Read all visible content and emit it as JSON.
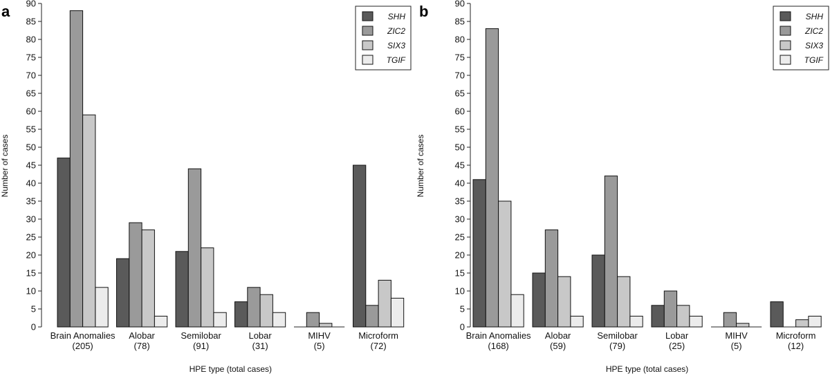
{
  "chart_data": [
    {
      "type": "bar",
      "panel_label": "a",
      "categories": [
        "Brain Anomalies",
        "Alobar",
        "Semilobar",
        "Lobar",
        "MIHV",
        "Microform"
      ],
      "category_totals": [
        "(205)",
        "(78)",
        "(91)",
        "(31)",
        "(5)",
        "(72)"
      ],
      "series": [
        {
          "name": "SHH",
          "color": "#5a5a5a",
          "values": [
            47,
            19,
            21,
            7,
            0,
            45
          ]
        },
        {
          "name": "ZIC2",
          "color": "#9a9a9a",
          "values": [
            88,
            29,
            44,
            11,
            4,
            6
          ]
        },
        {
          "name": "SIX3",
          "color": "#c8c8c8",
          "values": [
            59,
            27,
            22,
            9,
            1,
            13
          ]
        },
        {
          "name": "TGIF",
          "color": "#ececec",
          "values": [
            11,
            3,
            4,
            4,
            0,
            8
          ]
        }
      ],
      "xlabel": "HPE type (total cases)",
      "ylabel": "Number of cases",
      "ylim": [
        0,
        90
      ],
      "yticks": [
        0,
        5,
        10,
        15,
        20,
        25,
        30,
        35,
        40,
        45,
        50,
        55,
        60,
        65,
        70,
        75,
        80,
        85,
        90
      ],
      "legend_position": "top-right",
      "grid": false
    },
    {
      "type": "bar",
      "panel_label": "b",
      "categories": [
        "Brain Anomalies",
        "Alobar",
        "Semilobar",
        "Lobar",
        "MIHV",
        "Microform"
      ],
      "category_totals": [
        "(168)",
        "(59)",
        "(79)",
        "(25)",
        "(5)",
        "(12)"
      ],
      "series": [
        {
          "name": "SHH",
          "color": "#5a5a5a",
          "values": [
            41,
            15,
            20,
            6,
            0,
            7
          ]
        },
        {
          "name": "ZIC2",
          "color": "#9a9a9a",
          "values": [
            83,
            27,
            42,
            10,
            4,
            0
          ]
        },
        {
          "name": "SIX3",
          "color": "#c8c8c8",
          "values": [
            35,
            14,
            14,
            6,
            1,
            2
          ]
        },
        {
          "name": "TGIF",
          "color": "#ececec",
          "values": [
            9,
            3,
            3,
            3,
            0,
            3
          ]
        }
      ],
      "xlabel": "HPE type (total cases)",
      "ylabel": "Number of cases",
      "ylim": [
        0,
        90
      ],
      "yticks": [
        0,
        5,
        10,
        15,
        20,
        25,
        30,
        35,
        40,
        45,
        50,
        55,
        60,
        65,
        70,
        75,
        80,
        85,
        90
      ],
      "legend_position": "top-right",
      "grid": false
    }
  ]
}
